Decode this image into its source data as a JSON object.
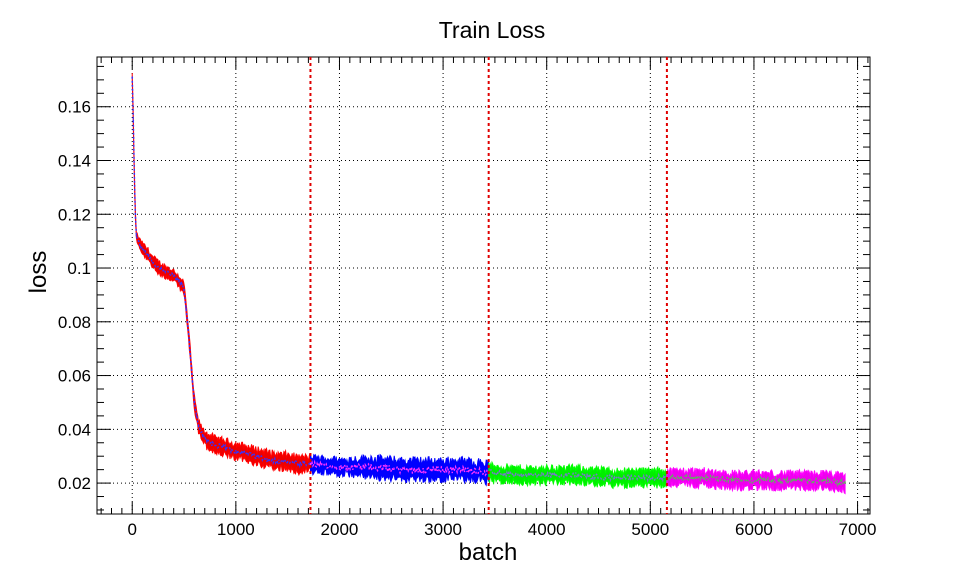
{
  "chart_data": {
    "type": "line",
    "title": "Train Loss",
    "xlabel": "batch",
    "ylabel": "loss",
    "xlim": [
      -340,
      7120
    ],
    "ylim": [
      0.0085,
      0.1785
    ],
    "x_ticks": [
      0,
      1000,
      2000,
      3000,
      4000,
      5000,
      6000,
      7000
    ],
    "x_tick_labels": [
      "0",
      "1000",
      "2000",
      "3000",
      "4000",
      "5000",
      "6000",
      "7000"
    ],
    "y_ticks": [
      0.02,
      0.04,
      0.06,
      0.08,
      0.1,
      0.12,
      0.14,
      0.16
    ],
    "y_tick_labels": [
      "0.02",
      "0.04",
      "0.06",
      "0.08",
      "0.1",
      "0.12",
      "0.14",
      "0.16"
    ],
    "grid": true,
    "vertical_markers": [
      1720,
      3440,
      5160
    ],
    "vertical_marker_color": "#e00000",
    "series": [
      {
        "color": "#ff0000",
        "band_color": "#ee0000",
        "line_color": "#3333ff",
        "x": [
          0,
          10,
          20,
          30,
          40,
          60,
          80,
          100,
          150,
          200,
          300,
          400,
          450,
          480,
          500,
          520,
          540,
          560,
          580,
          600,
          620,
          640,
          680,
          720,
          800,
          900,
          1000,
          1100,
          1200,
          1300,
          1400,
          1500,
          1600,
          1720
        ],
        "y": [
          0.171,
          0.155,
          0.135,
          0.12,
          0.112,
          0.11,
          0.108,
          0.107,
          0.105,
          0.102,
          0.099,
          0.097,
          0.095,
          0.094,
          0.092,
          0.085,
          0.077,
          0.068,
          0.058,
          0.05,
          0.045,
          0.041,
          0.038,
          0.036,
          0.034,
          0.033,
          0.032,
          0.031,
          0.03,
          0.029,
          0.028,
          0.028,
          0.027,
          0.027
        ],
        "spread": [
          0.002,
          0.002,
          0.002,
          0.002,
          0.002,
          0.002,
          0.003,
          0.003,
          0.003,
          0.003,
          0.003,
          0.003,
          0.003,
          0.003,
          0.003,
          0.003,
          0.003,
          0.003,
          0.003,
          0.003,
          0.003,
          0.003,
          0.003,
          0.004,
          0.004,
          0.004,
          0.004,
          0.004,
          0.004,
          0.004,
          0.004,
          0.004,
          0.004,
          0.004
        ]
      },
      {
        "color": "#0000ff",
        "band_color": "#0000ff",
        "line_color": "#ff33ff",
        "x": [
          1720,
          2000,
          2300,
          2600,
          2900,
          3200,
          3440
        ],
        "y": [
          0.027,
          0.026,
          0.026,
          0.025,
          0.025,
          0.025,
          0.024
        ],
        "spread": [
          0.004,
          0.004,
          0.005,
          0.005,
          0.005,
          0.005,
          0.005
        ]
      },
      {
        "color": "#00ff00",
        "band_color": "#00ee00",
        "line_color": "#7777cc",
        "x": [
          3440,
          3700,
          4000,
          4300,
          4600,
          4900,
          5160
        ],
        "y": [
          0.024,
          0.023,
          0.023,
          0.023,
          0.022,
          0.022,
          0.022
        ],
        "spread": [
          0.004,
          0.004,
          0.004,
          0.004,
          0.004,
          0.004,
          0.004
        ]
      },
      {
        "color": "#ff00ff",
        "band_color": "#ee00ee",
        "line_color": "#66aa66",
        "x": [
          5160,
          5500,
          5800,
          6100,
          6400,
          6700,
          6880
        ],
        "y": [
          0.022,
          0.022,
          0.021,
          0.021,
          0.021,
          0.021,
          0.02
        ],
        "spread": [
          0.004,
          0.004,
          0.004,
          0.004,
          0.004,
          0.004,
          0.004
        ]
      }
    ]
  }
}
